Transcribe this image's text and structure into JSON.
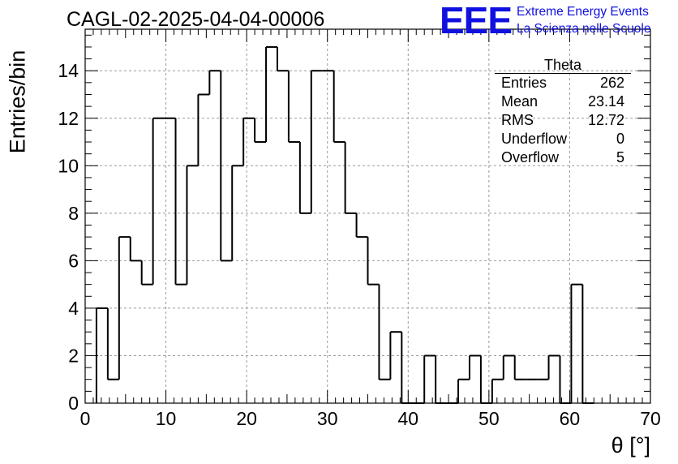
{
  "header": {
    "run_title": "CAGL-02-2025-04-04-00006",
    "brand_logo": "EEE",
    "brand_line1": "Extreme Energy Events",
    "brand_line2": "La Scienza nelle Scuole",
    "brand_color": "#1010e0"
  },
  "stats_box": {
    "title": "Theta",
    "rows": [
      {
        "label": "Entries",
        "value": "262"
      },
      {
        "label": "Mean",
        "value": "23.14"
      },
      {
        "label": "RMS",
        "value": "12.72"
      },
      {
        "label": "Underflow",
        "value": "0"
      },
      {
        "label": "Overflow",
        "value": "5"
      }
    ]
  },
  "chart_data": {
    "type": "bar",
    "style": "step histogram",
    "xlabel": "θ [°]",
    "ylabel": "Entries/bin",
    "xlim": [
      0,
      70
    ],
    "ylim": [
      0,
      15.75
    ],
    "grid": true,
    "x_ticks": [
      0,
      10,
      20,
      30,
      40,
      50,
      60,
      70
    ],
    "y_ticks": [
      0,
      2,
      4,
      6,
      8,
      10,
      12,
      14
    ],
    "bin_width": 1.4,
    "bin_edges_start": 1.4,
    "values": [
      4,
      1,
      7,
      6,
      5,
      12,
      12,
      5,
      10,
      13,
      14,
      6,
      10,
      12,
      11,
      15,
      14,
      11,
      8,
      14,
      14,
      11,
      8,
      7,
      5,
      1,
      3,
      0,
      0,
      2,
      0,
      0,
      1,
      2,
      0,
      1,
      2,
      1,
      1,
      1,
      2,
      0,
      5,
      0
    ]
  }
}
